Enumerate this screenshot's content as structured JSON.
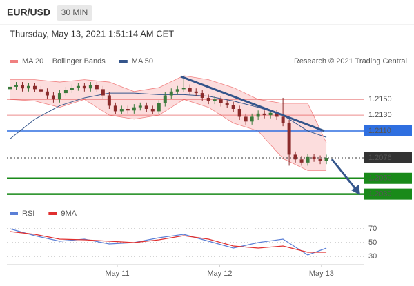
{
  "header": {
    "symbol": "EUR/USD",
    "timeframe": "30 MIN",
    "datetime": "Thursday, May 13, 2021 1:51:14 AM CET",
    "credit": "Research © 2021 Trading Central"
  },
  "chart_data": [
    {
      "type": "candlestick",
      "legend": [
        {
          "name": "MA 20 + Bollinger Bands",
          "color": "#f08080"
        },
        {
          "name": "MA 50",
          "color": "#34558b"
        }
      ],
      "up_color": "#3c7a3c",
      "down_color": "#8b2b2b",
      "xlim": [
        -0.5,
        57
      ],
      "ylim": [
        1.2014,
        1.2193
      ],
      "xticks": [
        {
          "value": 17.3,
          "label": "May 11"
        },
        {
          "value": 33.8,
          "label": "May 12"
        },
        {
          "value": 50.2,
          "label": "May 13"
        }
      ],
      "open": [
        1.2163,
        1.2166,
        1.2168,
        1.2164,
        1.2167,
        1.2163,
        1.216,
        1.2155,
        1.215,
        1.2158,
        1.2162,
        1.2165,
        1.2167,
        1.2164,
        1.2168,
        1.2163,
        1.2155,
        1.2142,
        1.2135,
        1.2138,
        1.2136,
        1.214,
        1.2142,
        1.2138,
        1.2135,
        1.2145,
        1.2155,
        1.216,
        1.2163,
        1.2165,
        1.216,
        1.2158,
        1.2152,
        1.2148,
        1.215,
        1.2145,
        1.2143,
        1.2138,
        1.2128,
        1.2122,
        1.2128,
        1.2132,
        1.213,
        1.2133,
        1.2128,
        1.212,
        1.208,
        1.2074,
        1.207,
        1.2077,
        1.2075,
        1.2072
      ],
      "high": [
        1.217,
        1.2172,
        1.2172,
        1.2171,
        1.2171,
        1.2167,
        1.2164,
        1.2159,
        1.2162,
        1.2166,
        1.2169,
        1.2171,
        1.2171,
        1.2172,
        1.2172,
        1.2167,
        1.2159,
        1.2146,
        1.2142,
        1.2142,
        1.2144,
        1.2146,
        1.2146,
        1.2142,
        1.2149,
        1.2159,
        1.2164,
        1.2167,
        1.2178,
        1.2169,
        1.2164,
        1.2162,
        1.2156,
        1.2154,
        1.2154,
        1.2149,
        1.2147,
        1.2142,
        1.2132,
        1.2132,
        1.2136,
        1.2136,
        1.2137,
        1.2137,
        1.2152,
        1.2124,
        1.2084,
        1.2078,
        1.2081,
        1.2081,
        1.2079,
        1.208
      ],
      "low": [
        1.2159,
        1.2162,
        1.216,
        1.216,
        1.2159,
        1.2156,
        1.2151,
        1.2146,
        1.2146,
        1.2154,
        1.2158,
        1.2161,
        1.216,
        1.216,
        1.2159,
        1.2151,
        1.2138,
        1.2131,
        1.2131,
        1.2132,
        1.2132,
        1.2136,
        1.2134,
        1.2131,
        1.2131,
        1.2141,
        1.2151,
        1.2156,
        1.2159,
        1.2156,
        1.2154,
        1.2148,
        1.2144,
        1.2144,
        1.2141,
        1.2139,
        1.2134,
        1.2124,
        1.2118,
        1.2118,
        1.2124,
        1.2126,
        1.2126,
        1.2124,
        1.2116,
        1.2066,
        1.207,
        1.2066,
        1.2066,
        1.2071,
        1.2068,
        1.2068
      ],
      "close": [
        1.2166,
        1.2168,
        1.2164,
        1.2167,
        1.2163,
        1.216,
        1.2155,
        1.215,
        1.2158,
        1.2162,
        1.2165,
        1.2167,
        1.2164,
        1.2168,
        1.2163,
        1.2155,
        1.2142,
        1.2135,
        1.2138,
        1.2136,
        1.214,
        1.2142,
        1.2138,
        1.2135,
        1.2145,
        1.2155,
        1.216,
        1.2163,
        1.2165,
        1.216,
        1.2158,
        1.2152,
        1.2148,
        1.215,
        1.2145,
        1.2143,
        1.2138,
        1.2128,
        1.2122,
        1.2128,
        1.2132,
        1.213,
        1.2133,
        1.2128,
        1.212,
        1.208,
        1.2074,
        1.207,
        1.2077,
        1.2075,
        1.2072,
        1.2076
      ],
      "bands": {
        "x": [
          0,
          4,
          8,
          12,
          16,
          20,
          24,
          28,
          32,
          36,
          40,
          44,
          48,
          51
        ],
        "upper": [
          1.2175,
          1.2175,
          1.2172,
          1.2175,
          1.2172,
          1.216,
          1.2165,
          1.218,
          1.2175,
          1.2165,
          1.215,
          1.2145,
          1.2145,
          1.2095
        ],
        "lower": [
          1.215,
          1.2148,
          1.214,
          1.215,
          1.213,
          1.2125,
          1.213,
          1.215,
          1.214,
          1.212,
          1.211,
          1.2075,
          1.206,
          1.206
        ]
      },
      "ma50": {
        "x": [
          0,
          4,
          8,
          12,
          16,
          20,
          24,
          28,
          32,
          36,
          40,
          44,
          48,
          51
        ],
        "values": [
          1.21,
          1.2125,
          1.2142,
          1.2152,
          1.2158,
          1.2158,
          1.2156,
          1.2156,
          1.2154,
          1.2148,
          1.214,
          1.213,
          1.211,
          1.2102
        ]
      },
      "levels": [
        {
          "value": 1.215,
          "label": "1.2150",
          "color": "#e04040",
          "kind": "resistance"
        },
        {
          "value": 1.213,
          "label": "1.2130",
          "color": "#e04040",
          "kind": "resistance"
        },
        {
          "value": 1.211,
          "label": "1.2110",
          "color": "#2f6fe0",
          "kind": "pivot"
        },
        {
          "value": 1.2076,
          "label": "1.2076",
          "color": "#333333",
          "kind": "last"
        },
        {
          "value": 1.205,
          "label": "1.2050",
          "color": "#1a8a1a",
          "kind": "support"
        },
        {
          "value": 1.203,
          "label": "1.2030",
          "color": "#1a8a1a",
          "kind": "support"
        }
      ]
    },
    {
      "type": "line",
      "xlim": [
        -0.5,
        57
      ],
      "ylim": [
        17,
        84
      ],
      "yticks": [
        70,
        50,
        30
      ],
      "series": [
        {
          "name": "RSI",
          "color": "#5b7fd6",
          "x": [
            0,
            4,
            8,
            12,
            16,
            20,
            24,
            28,
            32,
            36,
            40,
            44,
            48,
            51
          ],
          "values": [
            70,
            60,
            52,
            55,
            48,
            50,
            57,
            62,
            52,
            42,
            50,
            55,
            32,
            42
          ]
        },
        {
          "name": "9MA",
          "color": "#e03030",
          "x": [
            0,
            4,
            8,
            12,
            16,
            20,
            24,
            28,
            32,
            36,
            40,
            44,
            48,
            51
          ],
          "values": [
            66,
            62,
            55,
            54,
            52,
            50,
            54,
            60,
            55,
            45,
            42,
            45,
            36,
            36
          ]
        }
      ]
    }
  ]
}
